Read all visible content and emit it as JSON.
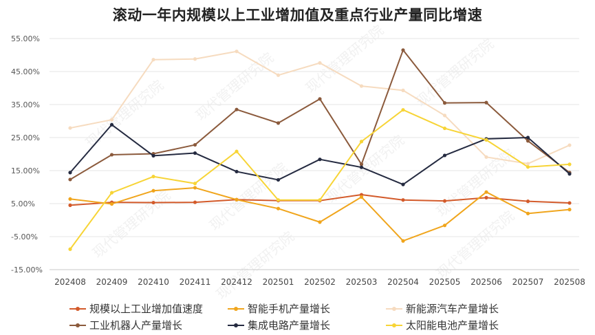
{
  "chart_data": {
    "type": "line",
    "title": "滚动一年内规模以上工业增加值及重点行业产量同比增速",
    "categories": [
      "202408",
      "202409",
      "202410",
      "202411",
      "202412",
      "202501",
      "202502",
      "202503",
      "202504",
      "202505",
      "202506",
      "202507",
      "202508"
    ],
    "ylim": [
      -15,
      55
    ],
    "yticks": [
      "-15.00%",
      "-5.00%",
      "5.00%",
      "15.00%",
      "25.00%",
      "35.00%",
      "45.00%",
      "55.00%"
    ],
    "ytick_values": [
      -15,
      -5,
      5,
      15,
      25,
      35,
      45,
      55
    ],
    "grid": true,
    "legend_position": "bottom",
    "series": [
      {
        "name": "规模以上工业增加值速度",
        "color": "#d35a2a",
        "values": [
          4.5,
          5.4,
          5.3,
          5.4,
          6.2,
          5.9,
          5.9,
          7.7,
          6.1,
          5.8,
          6.8,
          5.7,
          5.2
        ]
      },
      {
        "name": "智能手机产量增长",
        "color": "#f0a51c",
        "values": [
          6.4,
          4.9,
          8.9,
          9.8,
          6.2,
          3.5,
          -0.6,
          7.0,
          -6.3,
          -1.6,
          8.5,
          2.0,
          3.2
        ]
      },
      {
        "name": "新能源汽车产量增长",
        "color": "#f6dbbf",
        "values": [
          27.9,
          30.4,
          48.6,
          48.8,
          51.1,
          43.9,
          47.6,
          40.6,
          39.3,
          31.7,
          19.1,
          17.1,
          22.7
        ]
      },
      {
        "name": "工业机器人产量增长",
        "color": "#8b5a3c",
        "values": [
          12.3,
          19.8,
          20.1,
          22.8,
          33.5,
          29.4,
          36.7,
          16.9,
          51.5,
          35.5,
          35.6,
          24.0,
          14.4
        ]
      },
      {
        "name": "集成电路产量增长",
        "color": "#242a40",
        "values": [
          14.4,
          28.9,
          19.5,
          20.3,
          14.7,
          12.2,
          18.4,
          16.0,
          10.8,
          19.6,
          24.6,
          25.0,
          14.0
        ]
      },
      {
        "name": "太阳能电池产量增长",
        "color": "#f7d436",
        "values": [
          -8.8,
          8.3,
          13.2,
          11.1,
          20.8,
          6.1,
          6.1,
          23.8,
          33.4,
          27.8,
          24.3,
          16.1,
          16.9
        ]
      }
    ]
  },
  "watermark": "现代管理研究院"
}
